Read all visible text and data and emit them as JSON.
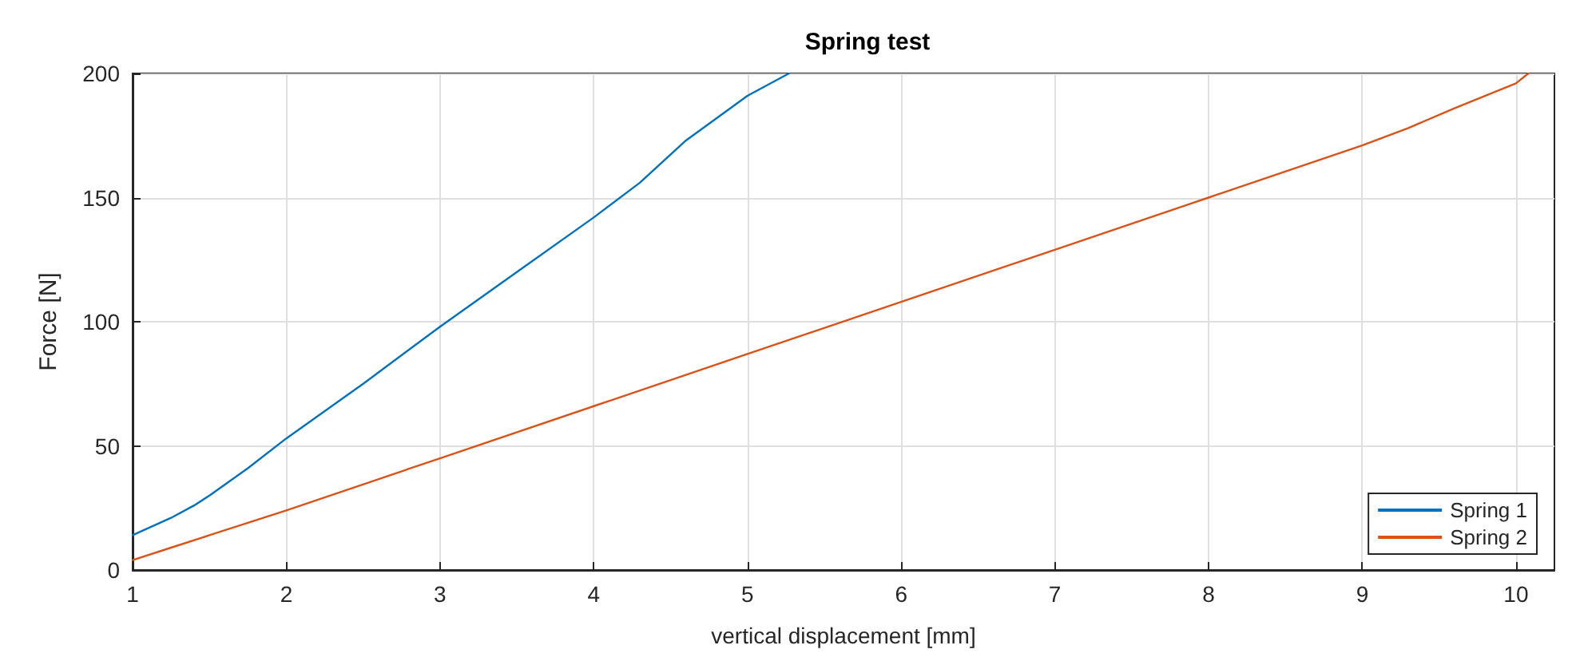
{
  "chart_data": {
    "type": "line",
    "title": "Spring test",
    "xlabel": "vertical displacement [mm]",
    "ylabel": "Force [N]",
    "xlim": [
      1,
      10.25
    ],
    "xticks": [
      1,
      2,
      3,
      4,
      5,
      6,
      7,
      8,
      9,
      10
    ],
    "ylim": [
      0,
      200
    ],
    "yticks": [
      0,
      50,
      100,
      150,
      200
    ],
    "grid": true,
    "legend": "bottom right",
    "line_style": "solid",
    "marker": "none",
    "series": [
      {
        "name": "Spring 1",
        "color": "#0072bd",
        "x": [
          1,
          1.25,
          1.4,
          1.5,
          1.75,
          2,
          2.5,
          3,
          3.5,
          4,
          4.3,
          4.6,
          5,
          5.27
        ],
        "values": [
          14,
          21,
          26,
          30,
          41,
          53,
          75,
          98,
          120,
          142,
          156,
          173,
          191,
          200
        ]
      },
      {
        "name": "Spring 2",
        "color": "#d95319",
        "x": [
          1,
          1.25,
          1.5,
          1.75,
          2,
          3,
          4,
          5,
          6,
          7,
          8,
          9,
          9.3,
          9.6,
          10,
          10.08
        ],
        "values": [
          4,
          9,
          14,
          19,
          24,
          45,
          66,
          87,
          108,
          129,
          150,
          171,
          178,
          186,
          196,
          200
        ]
      }
    ]
  }
}
